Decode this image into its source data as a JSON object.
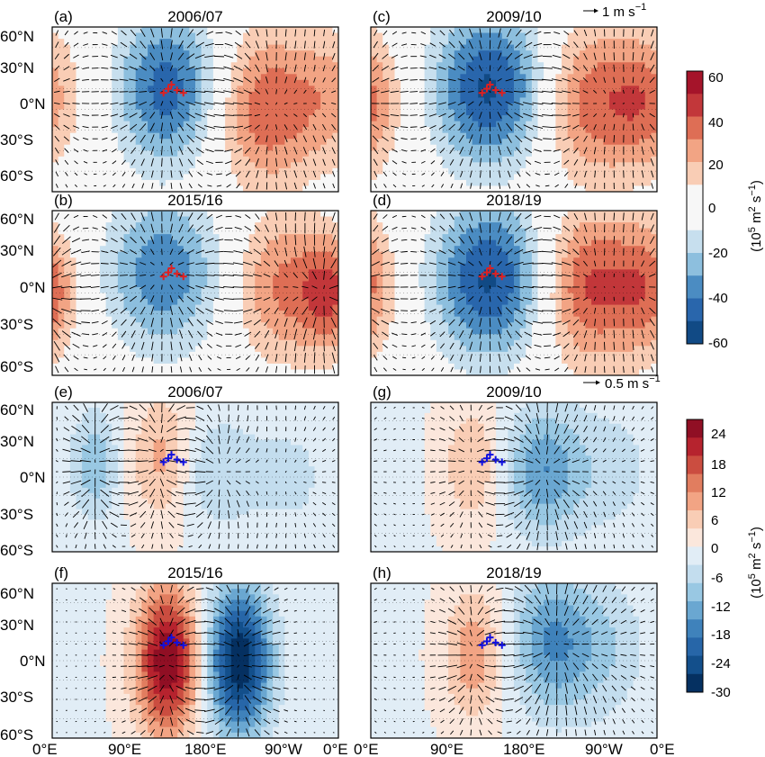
{
  "figure": {
    "lat_labels": [
      "60°N",
      "30°N",
      "0°N",
      "30°S",
      "60°S"
    ],
    "lon_labels": [
      "0°E",
      "90°E",
      "180°E",
      "90°W",
      "0°E"
    ],
    "reference_vectors": [
      {
        "text": "1 m s",
        "exp": "−1"
      },
      {
        "text": "0.5 m s",
        "exp": "−1"
      }
    ],
    "colorbars": [
      {
        "ticks": [
          "60",
          "40",
          "20",
          "0",
          "-20",
          "-40",
          "-60"
        ],
        "label_main": "(10",
        "label_sup1": "5",
        "label_mid": " m",
        "label_sup2": "2",
        "label_end": " s",
        "label_sup3": "−1",
        "label_close": ")",
        "range": [
          -60,
          60
        ],
        "colors": [
          "#114a85",
          "#2966ac",
          "#4b8cc2",
          "#8dbfde",
          "#c7dfee",
          "#f7f7f7",
          "#f7f7f7",
          "#f9cdb5",
          "#f2a484",
          "#de6e55",
          "#c2373a",
          "#a5142a"
        ]
      },
      {
        "ticks": [
          "24",
          "18",
          "12",
          "6",
          "0",
          "-6",
          "-12",
          "-18",
          "-24",
          "-30"
        ],
        "label_main": "(10",
        "label_sup1": "5",
        "label_mid": " m",
        "label_sup2": "2",
        "label_end": " s",
        "label_sup3": "−1",
        "label_close": ")",
        "range": [
          -30,
          27
        ],
        "colors": [
          "#053061",
          "#134f8b",
          "#2766a8",
          "#3f82bb",
          "#6aa7d1",
          "#99c8e3",
          "#c3ddee",
          "#e1edf6",
          "#fbe7dc",
          "#f9cdb5",
          "#f2a484",
          "#e17d5f",
          "#cb4d40",
          "#b6232e",
          "#900f24"
        ]
      }
    ],
    "panels": [
      {
        "letter": "(a)",
        "title": "2006/07",
        "marker_color": "#e02020"
      },
      {
        "letter": "(c)",
        "title": "2009/10",
        "marker_color": "#e02020"
      },
      {
        "letter": "(b)",
        "title": "2015/16",
        "marker_color": "#e02020"
      },
      {
        "letter": "(d)",
        "title": "2018/19",
        "marker_color": "#e02020"
      },
      {
        "letter": "(e)",
        "title": "2006/07",
        "marker_color": "#1010e0"
      },
      {
        "letter": "(g)",
        "title": "2009/10",
        "marker_color": "#1010e0"
      },
      {
        "letter": "(f)",
        "title": "2015/16",
        "marker_color": "#1010e0"
      },
      {
        "letter": "(h)",
        "title": "2018/19",
        "marker_color": "#1010e0"
      }
    ]
  },
  "chart_data": {
    "type": "map",
    "x_axis": {
      "label": "",
      "ticks": [
        "0°E",
        "90°E",
        "180°E",
        "90°W",
        "0°E"
      ],
      "range_deg_east": [
        0,
        360
      ]
    },
    "y_axis": {
      "label": "",
      "ticks": [
        "60°N",
        "30°N",
        "0°N",
        "30°S",
        "60°S"
      ],
      "range_deg_north": [
        -60,
        60
      ]
    },
    "fields": [
      {
        "panel": "(a)",
        "year": "2006/07",
        "colorbar": 1,
        "centers": [
          {
            "lon": 145,
            "lat": 15,
            "value": -45,
            "spread_lon": 45,
            "spread_lat": 40
          },
          {
            "lon": 270,
            "lat": 0,
            "value": 38,
            "spread_lon": 45,
            "spread_lat": 40
          },
          {
            "lon": 355,
            "lat": 10,
            "value": 20,
            "spread_lon": 35,
            "spread_lat": 35
          }
        ]
      },
      {
        "panel": "(c)",
        "year": "2009/10",
        "colorbar": 1,
        "centers": [
          {
            "lon": 150,
            "lat": 15,
            "value": -52,
            "spread_lon": 50,
            "spread_lat": 40
          },
          {
            "lon": 275,
            "lat": 5,
            "value": 35,
            "spread_lon": 45,
            "spread_lat": 40
          },
          {
            "lon": 350,
            "lat": 5,
            "value": 30,
            "spread_lon": 35,
            "spread_lat": 35
          }
        ]
      },
      {
        "panel": "(b)",
        "year": "2015/16",
        "colorbar": 1,
        "centers": [
          {
            "lon": 140,
            "lat": 15,
            "value": -38,
            "spread_lon": 50,
            "spread_lat": 40
          },
          {
            "lon": 285,
            "lat": 5,
            "value": 30,
            "spread_lon": 40,
            "spread_lat": 38
          },
          {
            "lon": 350,
            "lat": 0,
            "value": 38,
            "spread_lon": 28,
            "spread_lat": 30
          }
        ]
      },
      {
        "panel": "(d)",
        "year": "2018/19",
        "colorbar": 1,
        "centers": [
          {
            "lon": 150,
            "lat": 10,
            "value": -52,
            "spread_lon": 50,
            "spread_lat": 40
          },
          {
            "lon": 275,
            "lat": 5,
            "value": 42,
            "spread_lon": 45,
            "spread_lat": 40
          },
          {
            "lon": 350,
            "lat": 5,
            "value": 28,
            "spread_lon": 30,
            "spread_lat": 35
          }
        ]
      },
      {
        "panel": "(e)",
        "year": "2006/07",
        "colorbar": 2,
        "centers": [
          {
            "lon": 140,
            "lat": 15,
            "value": 10,
            "spread_lon": 28,
            "spread_lat": 35
          },
          {
            "lon": 55,
            "lat": 10,
            "value": -10,
            "spread_lon": 20,
            "spread_lat": 30
          },
          {
            "lon": 200,
            "lat": 5,
            "value": -7,
            "spread_lon": 35,
            "spread_lat": 30
          },
          {
            "lon": 300,
            "lat": 0,
            "value": -4,
            "spread_lon": 50,
            "spread_lat": 45
          }
        ]
      },
      {
        "panel": "(g)",
        "year": "2009/10",
        "colorbar": 2,
        "centers": [
          {
            "lon": 130,
            "lat": 10,
            "value": 8,
            "spread_lon": 28,
            "spread_lat": 35
          },
          {
            "lon": 215,
            "lat": 5,
            "value": -14,
            "spread_lon": 35,
            "spread_lat": 35
          },
          {
            "lon": 300,
            "lat": 5,
            "value": -5,
            "spread_lon": 45,
            "spread_lat": 40
          }
        ]
      },
      {
        "panel": "(f)",
        "year": "2015/16",
        "colorbar": 2,
        "centers": [
          {
            "lon": 145,
            "lat": 0,
            "value": 27,
            "spread_lon": 28,
            "spread_lat": 40
          },
          {
            "lon": 235,
            "lat": 0,
            "value": -30,
            "spread_lon": 28,
            "spread_lat": 40
          }
        ]
      },
      {
        "panel": "(h)",
        "year": "2018/19",
        "colorbar": 2,
        "centers": [
          {
            "lon": 130,
            "lat": 5,
            "value": 11,
            "spread_lon": 26,
            "spread_lat": 35
          },
          {
            "lon": 225,
            "lat": 15,
            "value": -14,
            "spread_lon": 35,
            "spread_lat": 38
          },
          {
            "lon": 290,
            "lat": 10,
            "value": -7,
            "spread_lon": 40,
            "spread_lat": 40
          }
        ]
      }
    ],
    "typhoon_markers_lonlat": [
      [
        140,
        12
      ],
      [
        146,
        15
      ],
      [
        150,
        18
      ],
      [
        157,
        14
      ],
      [
        165,
        12
      ]
    ]
  }
}
